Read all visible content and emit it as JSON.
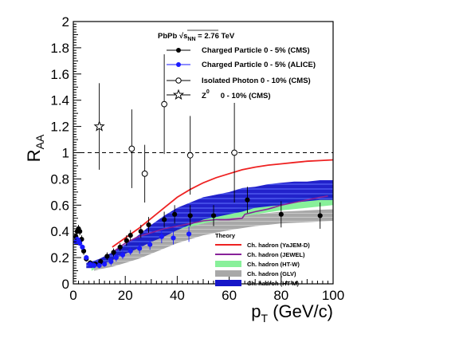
{
  "chart_data": {
    "type": "scatter",
    "xlabel": "p",
    "xlabel_sub": "T",
    "xlabel_unit": " (GeV/c)",
    "ylabel": "R",
    "ylabel_sub": "AA",
    "xlim": [
      0,
      100
    ],
    "ylim": [
      0,
      2
    ],
    "x_ticks": [
      "0",
      "20",
      "40",
      "60",
      "80",
      "100"
    ],
    "y_ticks": [
      "0",
      "0.2",
      "0.4",
      "0.6",
      "0.8",
      "1",
      "1.2",
      "1.4",
      "1.6",
      "1.8",
      "2"
    ],
    "reference_line": 1.0,
    "header": {
      "system": "PbPb",
      "energy_symbol": "√s",
      "energy_sub": "NN",
      "energy_value": " = 2.76 TeV"
    },
    "legend": [
      {
        "label": "Charged Particle 0 - 5% (CMS)",
        "marker": "filled-circle",
        "color": "#000000"
      },
      {
        "label": "Charged Particle 0 - 5% (ALICE)",
        "marker": "filled-circle",
        "color": "#1a1aff"
      },
      {
        "label": "Isolated Photon 0 - 10% (CMS)",
        "marker": "open-circle",
        "color": "#000000"
      },
      {
        "label_main": "Z",
        "label_sup": "0",
        "label_rest": "0 - 10% (CMS)",
        "marker": "open-star",
        "color": "#000000"
      }
    ],
    "theory_title": "Theory",
    "theory": [
      {
        "label": "Ch. hadron (YaJEM-D)",
        "style": "line",
        "color": "#ee2222"
      },
      {
        "label": "Ch. hadron (JEWEL)",
        "style": "line",
        "color": "#882299"
      },
      {
        "label": "Ch. hadron (HT-W)",
        "style": "band",
        "color": "#88f09a"
      },
      {
        "label": "Ch. hadron (GLV)",
        "style": "band",
        "color": "#a8a8a8"
      },
      {
        "label": "Ch. hadron (HT-M)",
        "style": "band",
        "color": "#1616c8"
      }
    ],
    "series": [
      {
        "name": "Charged Particle 0 - 5% (CMS)",
        "points": [
          {
            "x": 1.0,
            "y": 0.36,
            "err": 0.03
          },
          {
            "x": 1.5,
            "y": 0.4,
            "err": 0.03
          },
          {
            "x": 2.0,
            "y": 0.42,
            "err": 0.03
          },
          {
            "x": 2.5,
            "y": 0.4,
            "err": 0.03
          },
          {
            "x": 3.2,
            "y": 0.34,
            "err": 0.03
          },
          {
            "x": 4.0,
            "y": 0.25,
            "err": 0.03
          },
          {
            "x": 5.0,
            "y": 0.19,
            "err": 0.02
          },
          {
            "x": 6.5,
            "y": 0.16,
            "err": 0.02
          },
          {
            "x": 8.5,
            "y": 0.15,
            "err": 0.02
          },
          {
            "x": 10.5,
            "y": 0.17,
            "err": 0.02
          },
          {
            "x": 13.0,
            "y": 0.21,
            "err": 0.03
          },
          {
            "x": 15.5,
            "y": 0.24,
            "err": 0.03
          },
          {
            "x": 18.0,
            "y": 0.28,
            "err": 0.03
          },
          {
            "x": 20.5,
            "y": 0.33,
            "err": 0.04
          },
          {
            "x": 22.0,
            "y": 0.37,
            "err": 0.04
          },
          {
            "x": 26.0,
            "y": 0.4,
            "err": 0.05
          },
          {
            "x": 29.0,
            "y": 0.45,
            "err": 0.06
          },
          {
            "x": 35.0,
            "y": 0.49,
            "err": 0.06
          },
          {
            "x": 39.0,
            "y": 0.53,
            "err": 0.07
          },
          {
            "x": 45.0,
            "y": 0.52,
            "err": 0.08
          },
          {
            "x": 54.0,
            "y": 0.52,
            "err": 0.08
          },
          {
            "x": 67.0,
            "y": 0.64,
            "err": 0.1
          },
          {
            "x": 80.0,
            "y": 0.53,
            "err": 0.1
          },
          {
            "x": 95.0,
            "y": 0.52,
            "err": 0.1
          }
        ]
      },
      {
        "name": "Charged Particle 0 - 5% (ALICE)",
        "points": [
          {
            "x": 1.0,
            "y": 0.32,
            "err": 0.02
          },
          {
            "x": 1.5,
            "y": 0.34,
            "err": 0.02
          },
          {
            "x": 2.0,
            "y": 0.33,
            "err": 0.02
          },
          {
            "x": 2.5,
            "y": 0.31,
            "err": 0.02
          },
          {
            "x": 3.5,
            "y": 0.28,
            "err": 0.02
          },
          {
            "x": 5.0,
            "y": 0.2,
            "err": 0.02
          },
          {
            "x": 6.5,
            "y": 0.15,
            "err": 0.02
          },
          {
            "x": 8.0,
            "y": 0.14,
            "err": 0.02
          },
          {
            "x": 10.0,
            "y": 0.14,
            "err": 0.02
          },
          {
            "x": 12.0,
            "y": 0.15,
            "err": 0.02
          },
          {
            "x": 14.5,
            "y": 0.17,
            "err": 0.03
          },
          {
            "x": 16.5,
            "y": 0.2,
            "err": 0.03
          },
          {
            "x": 19.0,
            "y": 0.22,
            "err": 0.03
          },
          {
            "x": 22.0,
            "y": 0.25,
            "err": 0.03
          },
          {
            "x": 25.5,
            "y": 0.27,
            "err": 0.04
          },
          {
            "x": 29.5,
            "y": 0.3,
            "err": 0.04
          },
          {
            "x": 34.0,
            "y": 0.36,
            "err": 0.05
          },
          {
            "x": 38.5,
            "y": 0.35,
            "err": 0.05
          },
          {
            "x": 44.5,
            "y": 0.38,
            "err": 0.06
          }
        ]
      },
      {
        "name": "Isolated Photon 0 - 10% (CMS)",
        "points": [
          {
            "x": 22.5,
            "y": 1.03,
            "err": 0.3
          },
          {
            "x": 27.5,
            "y": 0.84,
            "err": 0.22
          },
          {
            "x": 35.0,
            "y": 1.37,
            "err": 0.38
          },
          {
            "x": 45.0,
            "y": 0.98,
            "err": 0.3
          },
          {
            "x": 62.0,
            "y": 1.0,
            "err": 0.38
          }
        ]
      },
      {
        "name": "Z0 0 - 10% (CMS)",
        "points": [
          {
            "x": 10.0,
            "y": 1.2,
            "err": 0.33
          }
        ]
      }
    ],
    "curves": {
      "yajem": {
        "x": [
          15,
          20,
          25,
          30,
          35,
          40,
          45,
          50,
          55,
          60,
          65,
          70,
          75,
          80,
          85,
          90,
          95,
          100
        ],
        "y": [
          0.28,
          0.35,
          0.42,
          0.5,
          0.58,
          0.66,
          0.72,
          0.77,
          0.81,
          0.84,
          0.87,
          0.89,
          0.905,
          0.915,
          0.925,
          0.935,
          0.94,
          0.945
        ]
      },
      "jewel": {
        "x": [
          15,
          20,
          25,
          30,
          35,
          40,
          45,
          50,
          55,
          60,
          65,
          66,
          68,
          70,
          75,
          80,
          85,
          90,
          95,
          98
        ],
        "y": [
          0.24,
          0.31,
          0.36,
          0.39,
          0.42,
          0.44,
          0.46,
          0.48,
          0.49,
          0.49,
          0.5,
          0.53,
          0.54,
          0.55,
          0.57,
          0.6,
          0.62,
          0.64,
          0.66,
          0.67
        ]
      },
      "htw": {
        "x": [
          7,
          10,
          15,
          20,
          25,
          30,
          35,
          40,
          50,
          60,
          70,
          80,
          90,
          100
        ],
        "y_low": [
          0.1,
          0.13,
          0.17,
          0.22,
          0.27,
          0.32,
          0.36,
          0.4,
          0.46,
          0.49,
          0.53,
          0.56,
          0.58,
          0.6
        ],
        "y_high": [
          0.15,
          0.18,
          0.23,
          0.29,
          0.34,
          0.39,
          0.44,
          0.48,
          0.52,
          0.56,
          0.61,
          0.65,
          0.67,
          0.7
        ]
      },
      "glv": {
        "x": [
          8,
          10,
          15,
          20,
          25,
          30,
          35,
          40,
          50,
          60,
          70,
          80,
          90,
          100
        ],
        "y_low": [
          0.1,
          0.11,
          0.13,
          0.16,
          0.19,
          0.23,
          0.27,
          0.31,
          0.37,
          0.41,
          0.44,
          0.46,
          0.47,
          0.48
        ],
        "y_high": [
          0.13,
          0.15,
          0.19,
          0.24,
          0.28,
          0.32,
          0.37,
          0.41,
          0.46,
          0.5,
          0.53,
          0.55,
          0.56,
          0.57
        ]
      },
      "htm": {
        "x": [
          5,
          7,
          10,
          15,
          20,
          25,
          30,
          35,
          40,
          45,
          50,
          55,
          60,
          65,
          70,
          75,
          80,
          85,
          90,
          95,
          100
        ],
        "y_low": [
          0.12,
          0.12,
          0.14,
          0.18,
          0.23,
          0.27,
          0.32,
          0.36,
          0.41,
          0.45,
          0.49,
          0.51,
          0.53,
          0.55,
          0.58,
          0.59,
          0.6,
          0.62,
          0.63,
          0.64,
          0.64
        ],
        "y_high": [
          0.16,
          0.17,
          0.19,
          0.24,
          0.3,
          0.37,
          0.45,
          0.52,
          0.58,
          0.62,
          0.66,
          0.68,
          0.7,
          0.73,
          0.74,
          0.76,
          0.77,
          0.78,
          0.78,
          0.79,
          0.79
        ]
      }
    }
  }
}
